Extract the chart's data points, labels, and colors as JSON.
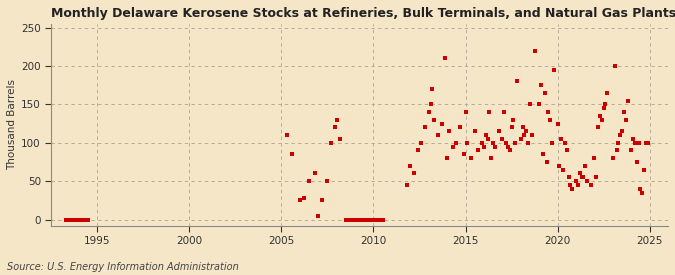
{
  "title": "Monthly Delaware Kerosene Stocks at Refineries, Bulk Terminals, and Natural Gas Plants",
  "ylabel": "Thousand Barrels",
  "source": "Source: U.S. Energy Information Administration",
  "bg_color": "#f5e6c8",
  "marker_color": "#cc0000",
  "xlim": [
    1992.5,
    2026.0
  ],
  "ylim": [
    -8,
    255
  ],
  "yticks": [
    0,
    50,
    100,
    150,
    200,
    250
  ],
  "xticks": [
    1995,
    2000,
    2005,
    2010,
    2015,
    2020,
    2025
  ],
  "data_points": [
    [
      1993.3,
      0
    ],
    [
      1993.5,
      0
    ],
    [
      1993.7,
      0
    ],
    [
      1993.9,
      0
    ],
    [
      1994.1,
      0
    ],
    [
      1994.3,
      0
    ],
    [
      1994.5,
      0
    ],
    [
      2005.3,
      110
    ],
    [
      2005.6,
      85
    ],
    [
      2006.0,
      25
    ],
    [
      2006.2,
      28
    ],
    [
      2006.5,
      50
    ],
    [
      2006.8,
      60
    ],
    [
      2007.0,
      5
    ],
    [
      2007.2,
      25
    ],
    [
      2007.5,
      50
    ],
    [
      2007.7,
      100
    ],
    [
      2007.9,
      120
    ],
    [
      2008.0,
      130
    ],
    [
      2008.2,
      105
    ],
    [
      2008.5,
      0
    ],
    [
      2008.7,
      0
    ],
    [
      2008.9,
      0
    ],
    [
      2009.1,
      0
    ],
    [
      2009.3,
      0
    ],
    [
      2009.5,
      0
    ],
    [
      2009.7,
      0
    ],
    [
      2009.9,
      0
    ],
    [
      2010.1,
      0
    ],
    [
      2010.3,
      0
    ],
    [
      2010.5,
      0
    ],
    [
      2011.8,
      45
    ],
    [
      2012.0,
      70
    ],
    [
      2012.2,
      60
    ],
    [
      2012.4,
      90
    ],
    [
      2012.6,
      100
    ],
    [
      2012.8,
      120
    ],
    [
      2013.0,
      140
    ],
    [
      2013.1,
      150
    ],
    [
      2013.2,
      170
    ],
    [
      2013.3,
      130
    ],
    [
      2013.5,
      110
    ],
    [
      2013.7,
      125
    ],
    [
      2013.9,
      210
    ],
    [
      2014.0,
      80
    ],
    [
      2014.1,
      115
    ],
    [
      2014.3,
      95
    ],
    [
      2014.5,
      100
    ],
    [
      2014.7,
      120
    ],
    [
      2014.9,
      85
    ],
    [
      2015.0,
      140
    ],
    [
      2015.1,
      100
    ],
    [
      2015.3,
      80
    ],
    [
      2015.5,
      115
    ],
    [
      2015.7,
      90
    ],
    [
      2015.9,
      100
    ],
    [
      2016.0,
      95
    ],
    [
      2016.1,
      110
    ],
    [
      2016.2,
      105
    ],
    [
      2016.3,
      140
    ],
    [
      2016.4,
      80
    ],
    [
      2016.5,
      100
    ],
    [
      2016.6,
      95
    ],
    [
      2016.8,
      115
    ],
    [
      2017.0,
      105
    ],
    [
      2017.1,
      140
    ],
    [
      2017.2,
      100
    ],
    [
      2017.3,
      95
    ],
    [
      2017.4,
      90
    ],
    [
      2017.5,
      120
    ],
    [
      2017.6,
      130
    ],
    [
      2017.7,
      100
    ],
    [
      2017.8,
      180
    ],
    [
      2018.0,
      105
    ],
    [
      2018.1,
      120
    ],
    [
      2018.2,
      110
    ],
    [
      2018.3,
      115
    ],
    [
      2018.4,
      100
    ],
    [
      2018.5,
      150
    ],
    [
      2018.6,
      110
    ],
    [
      2018.8,
      220
    ],
    [
      2019.0,
      150
    ],
    [
      2019.1,
      175
    ],
    [
      2019.2,
      85
    ],
    [
      2019.3,
      165
    ],
    [
      2019.4,
      75
    ],
    [
      2019.5,
      140
    ],
    [
      2019.6,
      130
    ],
    [
      2019.7,
      100
    ],
    [
      2019.8,
      195
    ],
    [
      2020.0,
      125
    ],
    [
      2020.1,
      70
    ],
    [
      2020.2,
      105
    ],
    [
      2020.3,
      65
    ],
    [
      2020.4,
      100
    ],
    [
      2020.5,
      90
    ],
    [
      2020.6,
      55
    ],
    [
      2020.7,
      45
    ],
    [
      2020.8,
      40
    ],
    [
      2021.0,
      50
    ],
    [
      2021.1,
      45
    ],
    [
      2021.2,
      60
    ],
    [
      2021.3,
      55
    ],
    [
      2021.4,
      55
    ],
    [
      2021.5,
      70
    ],
    [
      2021.6,
      50
    ],
    [
      2021.8,
      45
    ],
    [
      2022.0,
      80
    ],
    [
      2022.1,
      55
    ],
    [
      2022.2,
      120
    ],
    [
      2022.3,
      135
    ],
    [
      2022.4,
      130
    ],
    [
      2022.5,
      145
    ],
    [
      2022.6,
      150
    ],
    [
      2022.7,
      165
    ],
    [
      2023.0,
      80
    ],
    [
      2023.1,
      200
    ],
    [
      2023.2,
      90
    ],
    [
      2023.3,
      100
    ],
    [
      2023.4,
      110
    ],
    [
      2023.5,
      115
    ],
    [
      2023.6,
      140
    ],
    [
      2023.7,
      130
    ],
    [
      2023.8,
      155
    ],
    [
      2024.0,
      90
    ],
    [
      2024.1,
      105
    ],
    [
      2024.2,
      100
    ],
    [
      2024.3,
      75
    ],
    [
      2024.4,
      100
    ],
    [
      2024.5,
      40
    ],
    [
      2024.6,
      35
    ],
    [
      2024.7,
      65
    ],
    [
      2024.8,
      100
    ],
    [
      2024.9,
      100
    ]
  ]
}
